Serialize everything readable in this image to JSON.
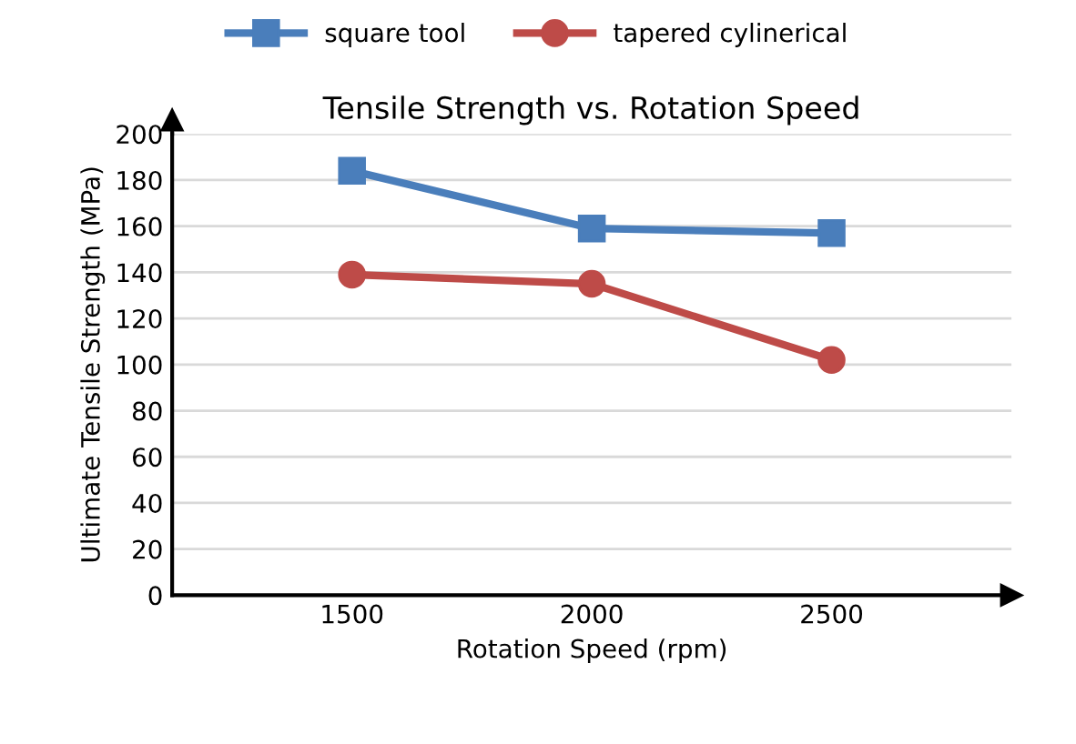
{
  "chart_data": {
    "type": "line",
    "title": "Tensile Strength vs. Rotation Speed",
    "xlabel": "Rotation Speed (rpm)",
    "ylabel": "Ultimate Tensile Strength (MPa)",
    "categories": [
      "1500",
      "2000",
      "2500"
    ],
    "series": [
      {
        "name": "square tool",
        "color": "#4a7ebb",
        "marker": "square",
        "values": [
          184,
          159,
          157
        ]
      },
      {
        "name": "tapered cylinerical",
        "color": "#be4b48",
        "marker": "circle",
        "values": [
          139,
          135,
          102
        ]
      }
    ],
    "ylim": [
      0,
      200
    ],
    "yticks": [
      0,
      20,
      40,
      60,
      80,
      100,
      120,
      140,
      160,
      180,
      200
    ],
    "grid": "y",
    "legend": "top",
    "line_style": "solid"
  }
}
